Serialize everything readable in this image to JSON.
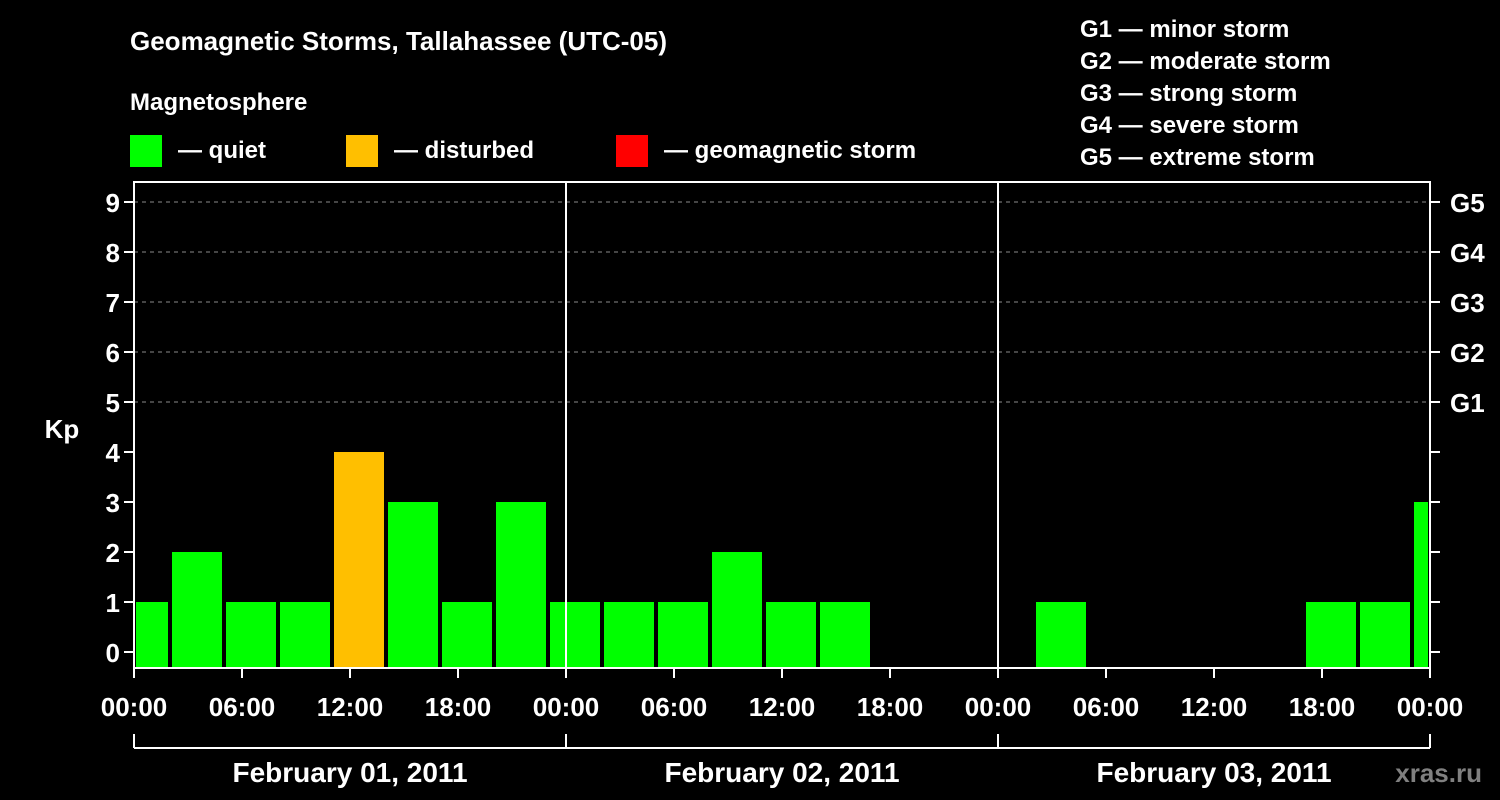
{
  "chart_data": {
    "type": "bar",
    "title": "Geomagnetic Storms, Tallahassee (UTC-05)",
    "ylabel": "Kp",
    "ylim": [
      0,
      9
    ],
    "grid": "dashed horizontal lines at Kp 5-9",
    "legend": {
      "heading": "Magnetosphere",
      "items": [
        {
          "label": "— quiet",
          "color": "#00ff00"
        },
        {
          "label": "— disturbed",
          "color": "#ffbf00"
        },
        {
          "label": "— geomagnetic storm",
          "color": "#ff0000"
        }
      ]
    },
    "storm_scale": [
      "G1 — minor storm",
      "G2 — moderate storm",
      "G3 — strong storm",
      "G4 — severe storm",
      "G5 — extreme storm"
    ],
    "right_axis_labels": [
      {
        "kp": 5,
        "label": "G1"
      },
      {
        "kp": 6,
        "label": "G2"
      },
      {
        "kp": 7,
        "label": "G3"
      },
      {
        "kp": 8,
        "label": "G4"
      },
      {
        "kp": 9,
        "label": "G5"
      }
    ],
    "y_ticks": [
      "0",
      "1",
      "2",
      "3",
      "4",
      "5",
      "6",
      "7",
      "8",
      "9"
    ],
    "x_tick_labels": [
      "00:00",
      "06:00",
      "12:00",
      "18:00",
      "00:00",
      "06:00",
      "12:00",
      "18:00",
      "00:00",
      "06:00",
      "12:00",
      "18:00",
      "00:00"
    ],
    "days": [
      "February 01, 2011",
      "February 02, 2011",
      "February 03, 2011"
    ],
    "bars": [
      {
        "start_hour": 0,
        "end_hour": 2,
        "kp": 1,
        "status": "quiet"
      },
      {
        "start_hour": 2,
        "end_hour": 5,
        "kp": 2,
        "status": "quiet"
      },
      {
        "start_hour": 5,
        "end_hour": 8,
        "kp": 1,
        "status": "quiet"
      },
      {
        "start_hour": 8,
        "end_hour": 11,
        "kp": 1,
        "status": "quiet"
      },
      {
        "start_hour": 11,
        "end_hour": 14,
        "kp": 4,
        "status": "disturbed"
      },
      {
        "start_hour": 14,
        "end_hour": 17,
        "kp": 3,
        "status": "quiet"
      },
      {
        "start_hour": 17,
        "end_hour": 20,
        "kp": 1,
        "status": "quiet"
      },
      {
        "start_hour": 20,
        "end_hour": 23,
        "kp": 3,
        "status": "quiet"
      },
      {
        "start_hour": 23,
        "end_hour": 26,
        "kp": 1,
        "status": "quiet"
      },
      {
        "start_hour": 26,
        "end_hour": 29,
        "kp": 1,
        "status": "quiet"
      },
      {
        "start_hour": 29,
        "end_hour": 32,
        "kp": 1,
        "status": "quiet"
      },
      {
        "start_hour": 32,
        "end_hour": 35,
        "kp": 2,
        "status": "quiet"
      },
      {
        "start_hour": 35,
        "end_hour": 38,
        "kp": 1,
        "status": "quiet"
      },
      {
        "start_hour": 38,
        "end_hour": 41,
        "kp": 1,
        "status": "quiet"
      },
      {
        "start_hour": 50,
        "end_hour": 53,
        "kp": 1,
        "status": "quiet"
      },
      {
        "start_hour": 65,
        "end_hour": 68,
        "kp": 1,
        "status": "quiet"
      },
      {
        "start_hour": 68,
        "end_hour": 71,
        "kp": 1,
        "status": "quiet"
      },
      {
        "start_hour": 71,
        "end_hour": 72,
        "kp": 3,
        "status": "quiet"
      }
    ]
  },
  "watermark": "xras.ru"
}
